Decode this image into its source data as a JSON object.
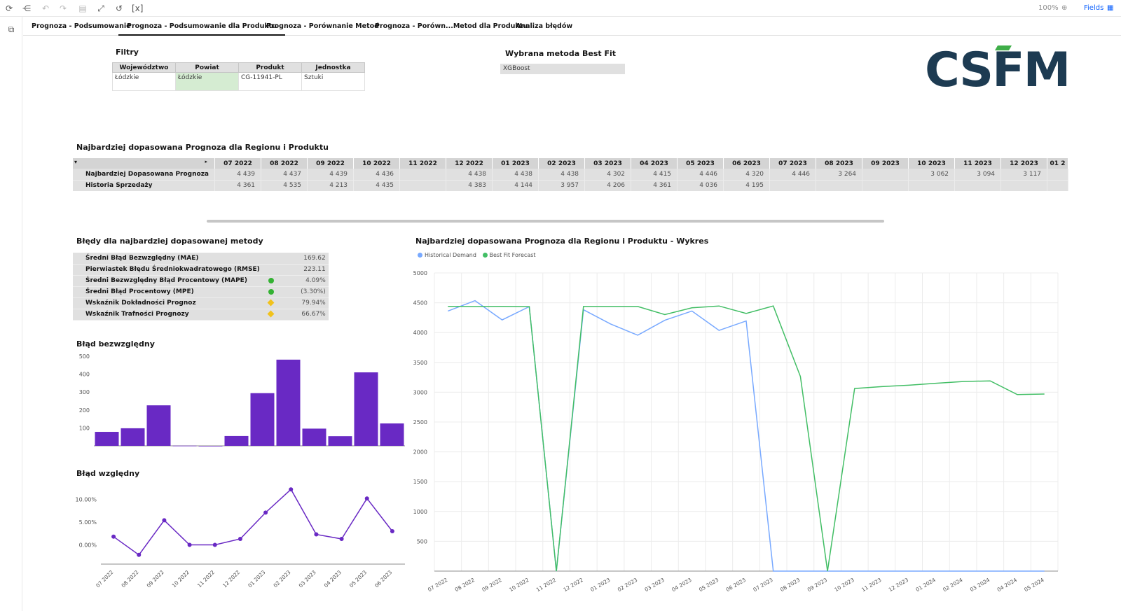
{
  "toolbar": {
    "zoom": "100%",
    "fields_label": "Fields",
    "icons": [
      "refresh-icon",
      "share-icon",
      "undo-icon",
      "redo-icon",
      "save-icon",
      "fullscreen-icon",
      "reset-icon",
      "variables-icon",
      "zoom-icon",
      "fields-icon"
    ]
  },
  "tabs": [
    {
      "label": "Prognoza - Podsumowanie",
      "active": false
    },
    {
      "label": "Prognoza - Podsumowanie dla Produktu",
      "active": true
    },
    {
      "label": "Prognoza  - Porównanie Metod",
      "active": false
    },
    {
      "label": "Prognoza  - Porówn...Metod dla Produktu",
      "active": false
    },
    {
      "label": "Analiza błędów",
      "active": false
    }
  ],
  "filters": {
    "title": "Filtry",
    "headers": [
      "Województwo",
      "Powiat",
      "Produkt",
      "Jednostka"
    ],
    "values": [
      "Łódzkie",
      "Łódzkie",
      "CG-11941-PL",
      "Sztuki"
    ]
  },
  "bestfit": {
    "title": "Wybrana metoda Best Fit",
    "value": "XGBoost"
  },
  "logo": {
    "text": "CSFM",
    "colors": {
      "dark": "#1d3b52",
      "accent": "#3fae49"
    }
  },
  "forecast_table": {
    "title": "Najbardziej dopasowana Prognoza dla Regionu i Produktu",
    "months": [
      "07 2022",
      "08 2022",
      "09 2022",
      "10 2022",
      "11 2022",
      "12 2022",
      "01 2023",
      "02 2023",
      "03 2023",
      "04 2023",
      "05 2023",
      "06 2023",
      "07 2023",
      "08 2023",
      "09 2023",
      "10 2023",
      "11 2023",
      "12 2023",
      "01 2"
    ],
    "rows": [
      {
        "label": "Najbardziej Dopasowana Prognoza",
        "values": [
          "4 439",
          "4 437",
          "4 439",
          "4 436",
          "",
          "4 438",
          "4 438",
          "4 438",
          "4 302",
          "4 415",
          "4 446",
          "4 320",
          "4 446",
          "3 264",
          "",
          "3 062",
          "3 094",
          "3 117",
          ""
        ]
      },
      {
        "label": "Historia Sprzedaży",
        "values": [
          "4 361",
          "4 535",
          "4 213",
          "4 435",
          "",
          "4 383",
          "4 144",
          "3 957",
          "4 206",
          "4 361",
          "4 036",
          "4 195",
          "",
          "",
          "",
          "",
          "",
          "",
          ""
        ]
      }
    ]
  },
  "errors": {
    "title": "Błędy dla najbardziej dopasowanej metody",
    "rows": [
      {
        "name": "Średni Błąd Bezwzględny (MAE)",
        "indicator": "none",
        "value": "169.62"
      },
      {
        "name": "Pierwiastek Błędu Średniokwadratowego (RMSE)",
        "indicator": "none",
        "value": "223.11"
      },
      {
        "name": "Średni Bezwzględny Błąd Procentowy (MAPE)",
        "indicator": "green",
        "value": "4.09%"
      },
      {
        "name": "Średni Błąd Procentowy (MPE)",
        "indicator": "green",
        "value": "(3.30%)"
      },
      {
        "name": "Wskaźnik Dokładności Prognoz",
        "indicator": "yellow",
        "value": "79.94%"
      },
      {
        "name": "Wskaźnik Trafności Prognozy",
        "indicator": "yellow",
        "value": "66.67%"
      }
    ],
    "colors": {
      "green": "#34b233",
      "yellow": "#f1c21b"
    }
  },
  "abs_error_chart": {
    "title": "Błąd bezwzględny",
    "color": "#6929c4",
    "chart_data": {
      "type": "bar",
      "categories": [
        "07 2022",
        "08 2022",
        "09 2022",
        "10 2022",
        "11 2022",
        "12 2022",
        "01 2023",
        "02 2023",
        "03 2023",
        "04 2023",
        "05 2023",
        "06 2023"
      ],
      "values": [
        78,
        98,
        226,
        1,
        0,
        55,
        294,
        481,
        96,
        54,
        410,
        125
      ],
      "yticks": [
        100,
        200,
        300,
        400,
        500
      ],
      "ylim": [
        0,
        500
      ]
    }
  },
  "rel_error_chart": {
    "title": "Błąd względny",
    "color": "#6929c4",
    "chart_data": {
      "type": "line",
      "categories": [
        "07 2022",
        "08 2022",
        "09 2022",
        "10 2022",
        "11 2022",
        "12 2022",
        "01 2023",
        "02 2023",
        "03 2023",
        "04 2023",
        "05 2023",
        "06 2023"
      ],
      "values": [
        1.8,
        -2.2,
        5.4,
        0.0,
        0.0,
        1.3,
        7.1,
        12.2,
        2.3,
        1.3,
        10.2,
        3.0
      ],
      "yticks": [
        0,
        5,
        10
      ],
      "ytick_labels": [
        "0.00%",
        "5.00%",
        "10.00%"
      ],
      "ylim": [
        -3,
        13
      ]
    }
  },
  "main_chart": {
    "title": "Najbardziej dopasowana Prognoza dla Regionu i Produktu - Wykres",
    "chart_data": {
      "type": "line",
      "categories": [
        "07 2022",
        "08 2022",
        "09 2022",
        "10 2022",
        "11 2022",
        "12 2022",
        "01 2023",
        "02 2023",
        "03 2023",
        "04 2023",
        "05 2023",
        "06 2023",
        "07 2023",
        "08 2023",
        "09 2023",
        "10 2023",
        "11 2023",
        "12 2023",
        "01 2024",
        "02 2024",
        "03 2024",
        "04 2024",
        "05 2024"
      ],
      "series": [
        {
          "name": "Historical Demand",
          "color": "#78a9ff",
          "values": [
            4361,
            4535,
            4213,
            4435,
            0,
            4383,
            4144,
            3957,
            4206,
            4361,
            4036,
            4195,
            0,
            0,
            0,
            0,
            0,
            0,
            0,
            0,
            0,
            0,
            0
          ]
        },
        {
          "name": "Best Fit Forecast",
          "color": "#42be65",
          "values": [
            4439,
            4437,
            4439,
            4436,
            0,
            4438,
            4438,
            4438,
            4302,
            4415,
            4446,
            4320,
            4446,
            3264,
            0,
            3062,
            3094,
            3117,
            3150,
            3180,
            3190,
            2960,
            2970
          ]
        }
      ],
      "yticks": [
        500,
        1000,
        1500,
        2000,
        2500,
        3000,
        3500,
        4000,
        4500,
        5000
      ],
      "ylim": [
        0,
        5000
      ],
      "legend": "top-left"
    }
  }
}
